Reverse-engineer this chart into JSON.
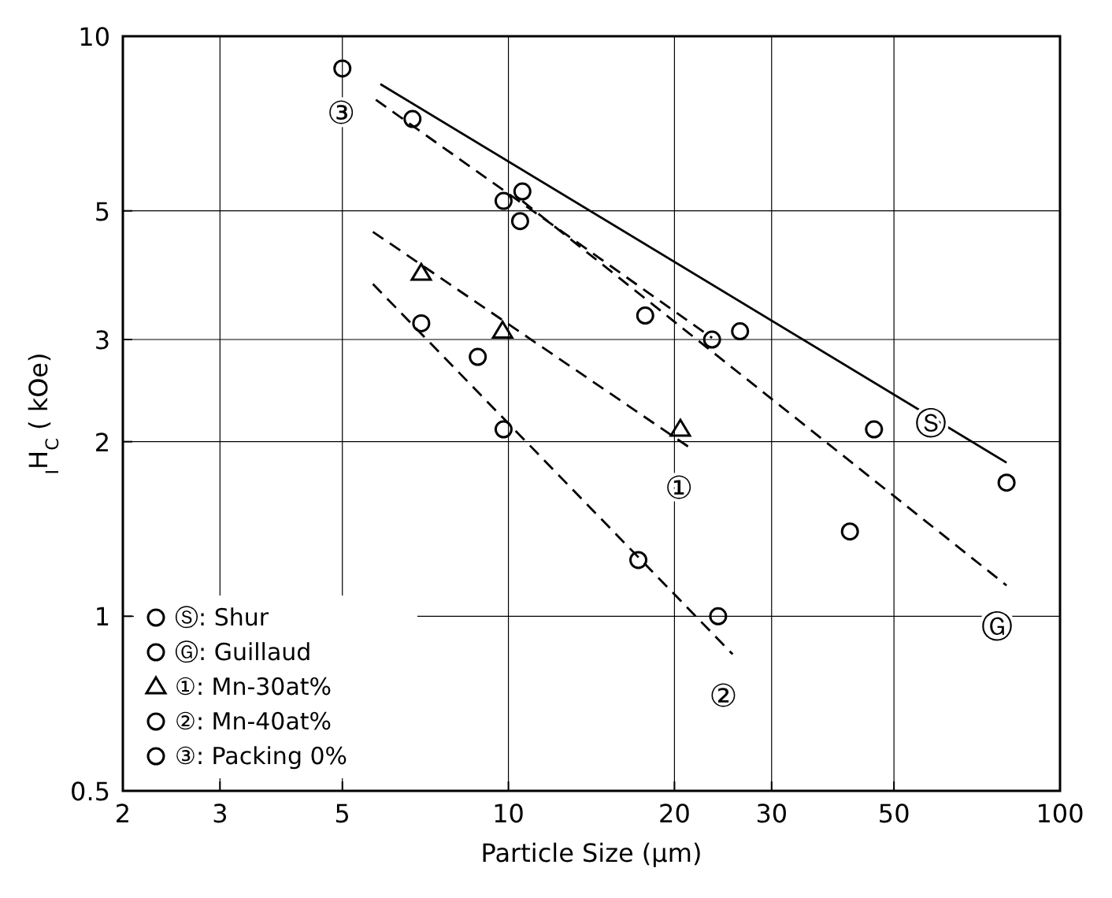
{
  "chart_data": {
    "type": "scatter",
    "xlabel": "Particle Size (μm)",
    "ylabel": "$_{I}$H$_{C}$ ( kOe)",
    "log": "xy",
    "xlim": [
      2,
      100
    ],
    "ylim": [
      0.5,
      10
    ],
    "xticks": [
      2,
      3,
      5,
      10,
      20,
      30,
      50,
      100
    ],
    "yticks": [
      0.5,
      1,
      2,
      3,
      5,
      10
    ],
    "grid": true,
    "legend": "bottom left",
    "series": [
      {
        "name": "Ⓢ: Shur",
        "color": "#000000",
        "marker": "circle",
        "x": [
          5,
          10.6,
          26.3,
          46,
          80
        ],
        "values": [
          8.8,
          5.4,
          3.1,
          2.1,
          1.7
        ]
      },
      {
        "name": "Ⓖ: Guillaud",
        "color": "#000000",
        "marker": "circle",
        "x": [
          10.5,
          23.4,
          41.6
        ],
        "values": [
          4.8,
          3.0,
          1.4
        ]
      },
      {
        "name": "①: Mn-30at%",
        "color": "#000000",
        "marker": "triangle",
        "x": [
          6.95,
          9.76,
          20.5
        ],
        "values": [
          3.9,
          3.1,
          2.1
        ]
      },
      {
        "name": "②: Mn-40at%",
        "color": "#000000",
        "marker": "circle",
        "x": [
          6.95,
          8.8,
          9.8,
          17.2,
          24
        ],
        "values": [
          3.2,
          2.8,
          2.1,
          1.25,
          1.0
        ]
      },
      {
        "name": "③: Packing 0%",
        "color": "#000000",
        "marker": "circle",
        "x": [
          6.7,
          9.8,
          17.7
        ],
        "values": [
          7.2,
          5.2,
          3.3
        ]
      },
      {
        "type": "line",
        "color": "#000000",
        "line_style": "solid",
        "marker": "none",
        "x": [
          5.86,
          80
        ],
        "values": [
          8.27,
          1.84
        ]
      },
      {
        "type": "line",
        "color": "#000000",
        "line_style": "dashed",
        "marker": "none",
        "x": [
          10.6,
          80
        ],
        "values": [
          5.2,
          1.13
        ]
      },
      {
        "type": "line",
        "color": "#000000",
        "line_style": "dashed",
        "marker": "none",
        "x": [
          5.68,
          21.2
        ],
        "values": [
          4.6,
          1.96
        ]
      },
      {
        "type": "line",
        "color": "#000000",
        "line_style": "dashed",
        "marker": "none",
        "x": [
          5.68,
          25.5
        ],
        "values": [
          3.74,
          0.86
        ]
      },
      {
        "type": "line",
        "color": "#000000",
        "line_style": "dashed",
        "marker": "none",
        "x": [
          5.75,
          23.4
        ],
        "values": [
          7.77,
          3.02
        ]
      }
    ],
    "annotations": [
      {
        "text": "Ⓢ",
        "x": 46,
        "y": 2.1
      },
      {
        "text": "Ⓖ",
        "x": 80,
        "y": 1.13
      },
      {
        "text": "①",
        "x": 21.2,
        "y": 1.96
      },
      {
        "text": "②",
        "x": 25.5,
        "y": 0.86
      },
      {
        "text": "③",
        "x": 5.75,
        "y": 7.77
      }
    ]
  }
}
